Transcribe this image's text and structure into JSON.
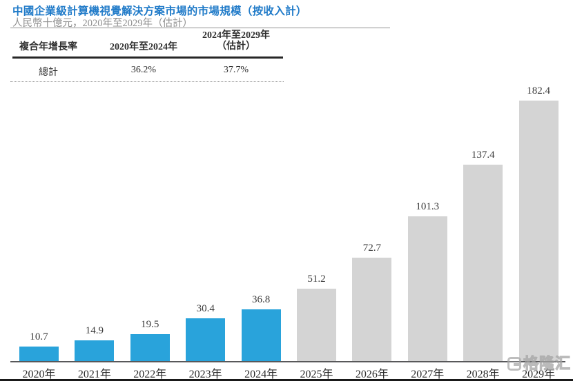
{
  "header": {
    "title": "中國企業級計算機視覺解決方案市場的市場規模（按收入計）",
    "subtitle": "人民幣十億元，2020年至2029年（估計）"
  },
  "cagr_table": {
    "row_header": "複合年增長率",
    "col_2020_2024_header": "2020年至2024年",
    "col_2024_2029_header_line1": "2024年至2029年",
    "col_2024_2029_header_line2": "（估計）",
    "total_label": "總計",
    "cagr_2020_2024": "36.2%",
    "cagr_2024_2029": "37.7%"
  },
  "chart_data": {
    "type": "bar",
    "title": "中國企業級計算機視覺解決方案市場的市場規模（按收入計）",
    "unit": "人民幣十億元",
    "categories": [
      "2020年",
      "2021年",
      "2022年",
      "2023年",
      "2024年",
      "2025年",
      "2026年",
      "2027年",
      "2028年",
      "2029年"
    ],
    "values": [
      10.7,
      14.9,
      19.5,
      30.4,
      36.8,
      51.2,
      72.7,
      101.3,
      137.4,
      182.4
    ],
    "bar_types": [
      "actual",
      "actual",
      "actual",
      "actual",
      "actual",
      "estimated",
      "estimated",
      "estimated",
      "estimated",
      "estimated"
    ],
    "colors": {
      "actual": "#29A3DB",
      "estimated": "#D4D4D4"
    },
    "ylim": [
      0,
      190
    ],
    "grid": false,
    "legend": "none",
    "value_labels_shown": true
  },
  "watermark": {
    "logo": "gelonghui-g",
    "text": "格隆汇"
  }
}
